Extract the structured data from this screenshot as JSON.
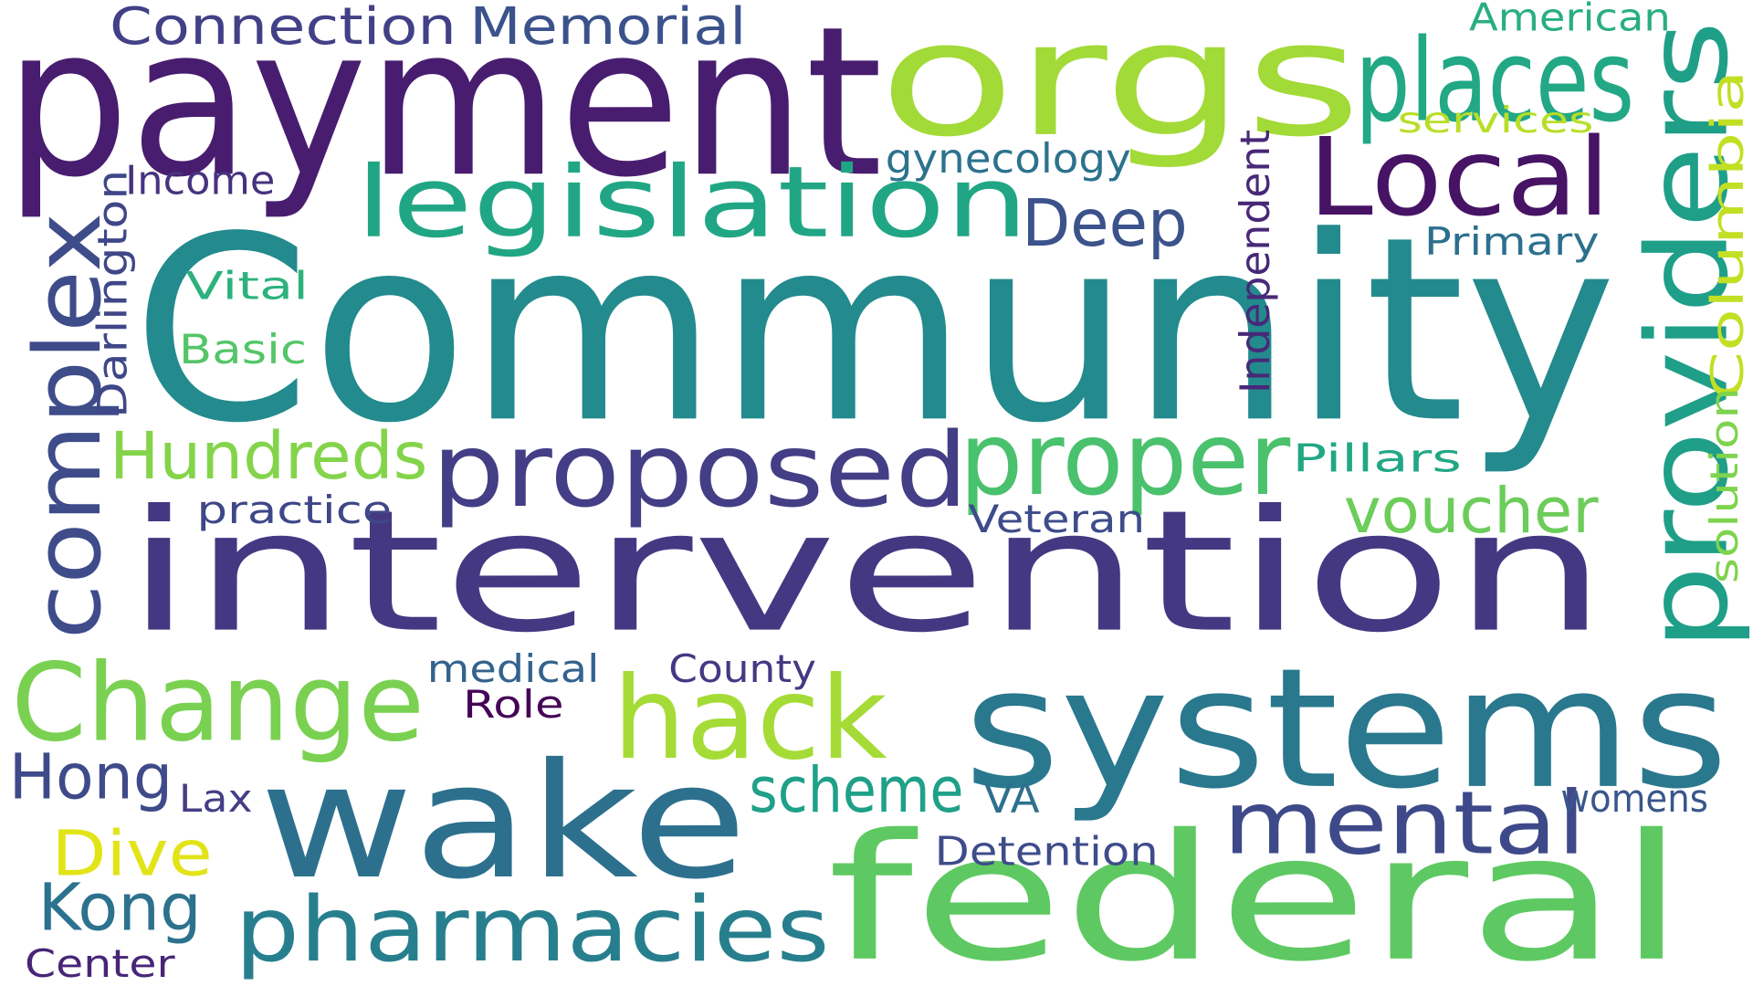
{
  "words": [
    {
      "text": "Community",
      "color": "#238a8d"
    },
    {
      "text": "intervention",
      "color": "#453882"
    },
    {
      "text": "payment",
      "color": "#481d6f"
    },
    {
      "text": "orgs",
      "color": "#a2da37"
    },
    {
      "text": "systems",
      "color": "#2a788e"
    },
    {
      "text": "federal",
      "color": "#5ec962"
    },
    {
      "text": "wake",
      "color": "#2d708e"
    },
    {
      "text": "legislation",
      "color": "#21a685"
    },
    {
      "text": "proposed",
      "color": "#433e85"
    },
    {
      "text": "complex",
      "color": "#3e4c8a"
    },
    {
      "text": "providers",
      "color": "#1f9f88"
    },
    {
      "text": "places",
      "color": "#22a884"
    },
    {
      "text": "Local",
      "color": "#471365"
    },
    {
      "text": "proper",
      "color": "#4ac16d"
    },
    {
      "text": "Change",
      "color": "#7ad151"
    },
    {
      "text": "hack",
      "color": "#a5db36"
    },
    {
      "text": "pharmacies",
      "color": "#277f8e"
    },
    {
      "text": "mental",
      "color": "#3e4989"
    },
    {
      "text": "Hundreds",
      "color": "#84d44b"
    },
    {
      "text": "voucher",
      "color": "#6ccd5a"
    },
    {
      "text": "scheme",
      "color": "#1fa088"
    },
    {
      "text": "Deep",
      "color": "#3b528b"
    },
    {
      "text": "Hong",
      "color": "#3e4a89"
    },
    {
      "text": "Kong",
      "color": "#2c728e"
    },
    {
      "text": "Dive",
      "color": "#e2e418"
    },
    {
      "text": "Columbia",
      "color": "#c2df23"
    },
    {
      "text": "Connection",
      "color": "#424086"
    },
    {
      "text": "Memorial",
      "color": "#3b528b"
    },
    {
      "text": "American",
      "color": "#29af7f"
    },
    {
      "text": "services",
      "color": "#b8de29"
    },
    {
      "text": "gynecology",
      "color": "#2c728e"
    },
    {
      "text": "Income",
      "color": "#46337f"
    },
    {
      "text": "Darlington",
      "color": "#3f4788"
    },
    {
      "text": "Independent",
      "color": "#482878"
    },
    {
      "text": "Primary",
      "color": "#2d708e"
    },
    {
      "text": "Vital",
      "color": "#2db27d"
    },
    {
      "text": "Basic",
      "color": "#54c568"
    },
    {
      "text": "Pillars",
      "color": "#22a785"
    },
    {
      "text": "solution",
      "color": "#7fd34e"
    },
    {
      "text": "practice",
      "color": "#3f4788"
    },
    {
      "text": "Veteran",
      "color": "#3e4c8a"
    },
    {
      "text": "medical",
      "color": "#33638d"
    },
    {
      "text": "County",
      "color": "#443983"
    },
    {
      "text": "Role",
      "color": "#450457"
    },
    {
      "text": "Lax",
      "color": "#433e85"
    },
    {
      "text": "VA",
      "color": "#2d708e"
    },
    {
      "text": "womens",
      "color": "#39568c"
    },
    {
      "text": "Detention",
      "color": "#3e4c8a"
    },
    {
      "text": "Center",
      "color": "#482576"
    }
  ]
}
